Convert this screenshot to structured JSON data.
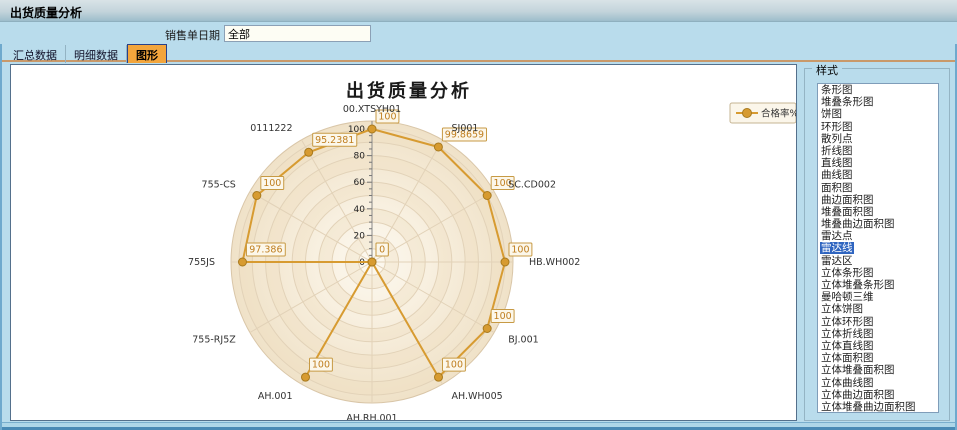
{
  "window": {
    "title": "出货质量分析"
  },
  "filter": {
    "label": "销售单日期",
    "value": "全部"
  },
  "tabs": [
    {
      "label": "汇总数据",
      "active": false
    },
    {
      "label": "明细数据",
      "active": false
    },
    {
      "label": "图形",
      "active": true
    }
  ],
  "style_panel": {
    "title": "样式",
    "selected": "雷达线",
    "selected_index": 13,
    "options": [
      "条形图",
      "堆叠条形图",
      "饼图",
      "环形图",
      "散列点",
      "折线图",
      "直线图",
      "曲线图",
      "面积图",
      "曲边面积图",
      "堆叠面积图",
      "堆叠曲边面积图",
      "雷达点",
      "雷达线",
      "雷达区",
      "立体条形图",
      "立体堆叠条形图",
      "曼哈顿三维",
      "立体饼图",
      "立体环形图",
      "立体折线图",
      "立体直线图",
      "立体面积图",
      "立体堆叠面积图",
      "立体曲线图",
      "立体曲边面积图",
      "立体堆叠曲边面积图"
    ]
  },
  "chart_data": {
    "type": "line",
    "variant": "radar-line",
    "title": "出货质量分析",
    "legend": {
      "label": "合格率%",
      "position": "top-right"
    },
    "categories": [
      "00.XTSYH01",
      "SJ001",
      "SC.CD002",
      "HB.WH002",
      "BJ.001",
      "AH.WH005",
      "AH.RH.001",
      "AH.001",
      "755-RJ5Z",
      "755JS",
      "755-CS",
      "0111222"
    ],
    "series": [
      {
        "name": "合格率%",
        "values": [
          100,
          99.8659,
          100,
          100,
          100,
          100,
          0,
          100,
          0,
          97.386,
          100,
          95.2381
        ],
        "display_labels": [
          "100",
          "99.8659",
          "100",
          "100",
          "100",
          "100",
          "0",
          "100",
          "0",
          "97.386",
          "100",
          "95.2381"
        ]
      }
    ],
    "axis": {
      "min": 0,
      "max": 100,
      "major_tick": 20,
      "minor_tick": 5,
      "tick_labels": [
        "0",
        "20",
        "40",
        "60",
        "80",
        "100"
      ]
    },
    "grid": true,
    "colors": {
      "series": "#d79b31",
      "series_dark": "#a87a1e",
      "plot_inner": "#fdf9f0",
      "plot_outer": "#f0e2c8",
      "band": "#eddcbd",
      "grid_line": "#e2d2b8",
      "axis_line": "#8a8a8a",
      "tick_text": "#222222",
      "category_text": "#333333",
      "value_text": "#bf7e1f",
      "value_box_fill": "#fcf7ea",
      "value_box_border": "#c79a44",
      "legend_fill": "#fbf6ea",
      "legend_border": "#c6b493",
      "title_text": "#1a1a1a"
    }
  },
  "ui_colors": {
    "page_bg": "#b9dcec",
    "active_tab": "#f3a53c",
    "selection": "#2f65c0",
    "tab_underline": "#c9996a"
  }
}
